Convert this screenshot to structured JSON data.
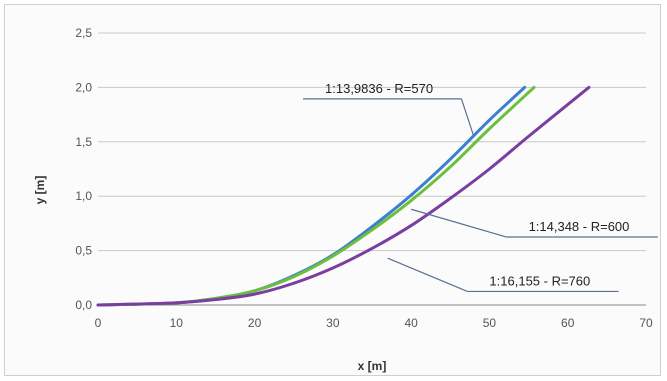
{
  "chart_data": {
    "type": "line",
    "title": "",
    "xlabel": "x [m]",
    "ylabel": "y [m]",
    "xlim": [
      0,
      70
    ],
    "ylim": [
      0,
      2.5
    ],
    "xticks": [
      "0",
      "10",
      "20",
      "30",
      "40",
      "50",
      "60",
      "70"
    ],
    "yticks": [
      "0,0",
      "0,5",
      "1,0",
      "1,5",
      "2,0",
      "2,5"
    ],
    "grid": "horizontal",
    "legend": "none",
    "series": [
      {
        "name": "1:13,9836 - R=570",
        "color": "#3b7fd1",
        "x": [
          0,
          10,
          15,
          20,
          25,
          30,
          35,
          40,
          45,
          50,
          54.5
        ],
        "y": [
          0.0,
          0.02,
          0.06,
          0.13,
          0.27,
          0.46,
          0.72,
          1.01,
          1.34,
          1.7,
          2.0
        ]
      },
      {
        "name": "1:14,348 - R=600",
        "color": "#6cbf3c",
        "x": [
          0,
          10,
          15,
          20,
          25,
          30,
          35,
          40,
          45,
          50,
          55.7
        ],
        "y": [
          0.0,
          0.02,
          0.06,
          0.13,
          0.26,
          0.45,
          0.69,
          0.96,
          1.27,
          1.62,
          2.0
        ]
      },
      {
        "name": "1:16,155 - R=760",
        "color": "#7a3ea0",
        "x": [
          0,
          10,
          15,
          20,
          25,
          30,
          35,
          40,
          45,
          50,
          55,
          62.7
        ],
        "y": [
          0.0,
          0.02,
          0.05,
          0.1,
          0.2,
          0.34,
          0.52,
          0.73,
          0.98,
          1.25,
          1.55,
          2.0
        ]
      }
    ],
    "annotations": [
      {
        "text": "1:13,9836 - R=570",
        "x": 29,
        "y": 1.95,
        "target_x": 48,
        "target_y": 1.55
      },
      {
        "text": "1:14,348 - R=600",
        "x": 55,
        "y": 0.68,
        "target_x": 40,
        "target_y": 0.88
      },
      {
        "text": "1:16,155 - R=760",
        "x": 50,
        "y": 0.18,
        "target_x": 37,
        "target_y": 0.43
      }
    ]
  }
}
